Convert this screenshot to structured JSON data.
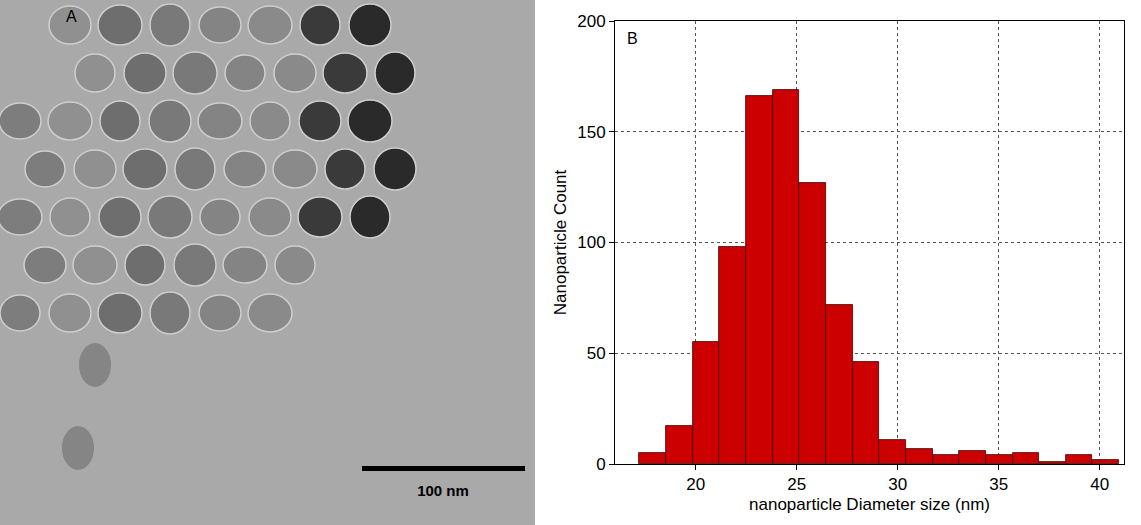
{
  "image_panel": {
    "label": "A",
    "scale_bar": "100 nm"
  },
  "chart_data": {
    "type": "histogram",
    "annotations": [
      "B"
    ],
    "x_label": "nanoparticle Diameter size (nm)",
    "y_label": "Nanoparticle Count",
    "bins": [
      17.2,
      18.52,
      19.84,
      21.16,
      22.48,
      23.8,
      25.12,
      26.44,
      27.76,
      29.08,
      30.4,
      31.72,
      33.04,
      34.36,
      35.68,
      37.0,
      38.32,
      39.64,
      40.96
    ],
    "values": [
      5,
      17,
      55,
      98,
      166,
      169,
      127,
      72,
      46,
      11,
      7,
      4,
      6,
      4,
      5,
      1,
      4,
      2
    ],
    "color": "#cc0000",
    "xlim": [
      16,
      41.2
    ],
    "xticks": [
      20,
      25,
      30,
      35,
      40
    ],
    "ylim": [
      0,
      200
    ],
    "yticks": [
      0,
      50,
      100,
      150,
      200
    ],
    "grid": true
  }
}
